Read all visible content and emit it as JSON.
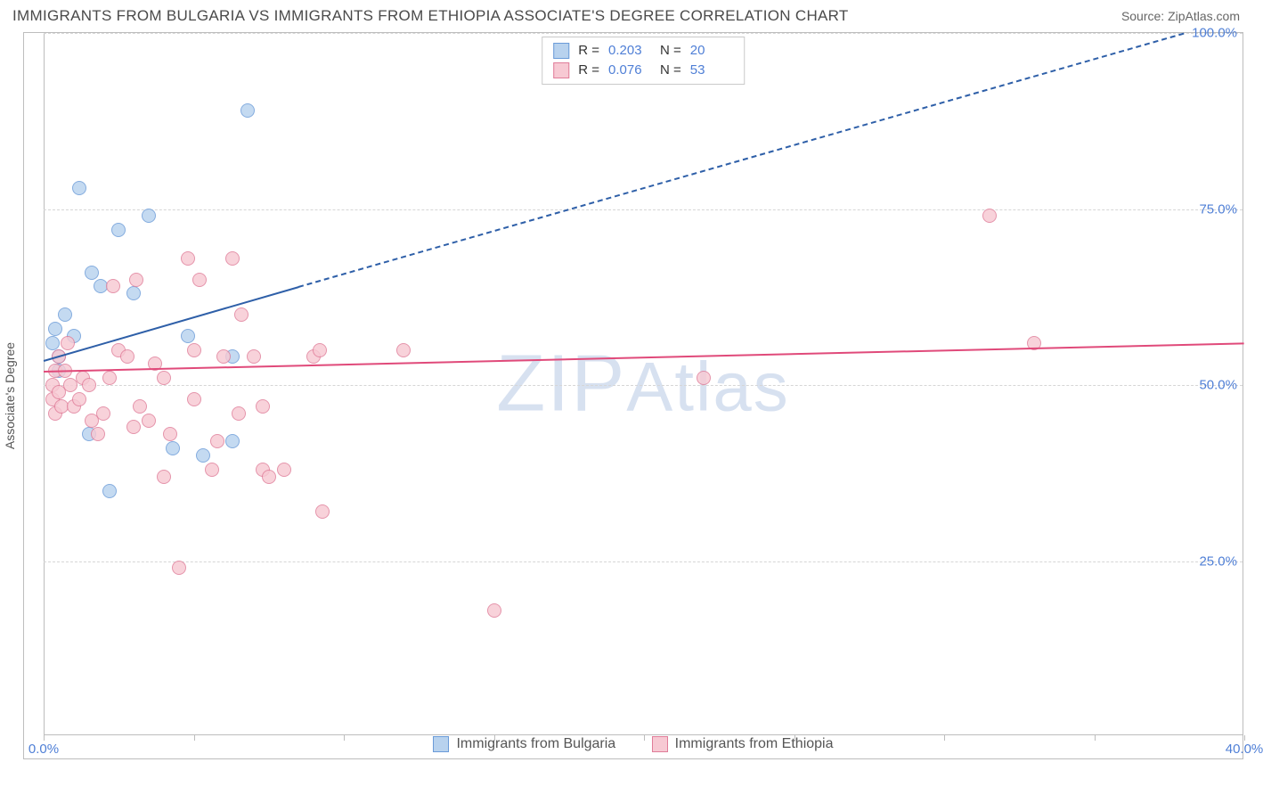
{
  "title": "IMMIGRANTS FROM BULGARIA VS IMMIGRANTS FROM ETHIOPIA ASSOCIATE'S DEGREE CORRELATION CHART",
  "source": "Source: ZipAtlas.com",
  "ylabel": "Associate's Degree",
  "watermark_a": "ZIP",
  "watermark_b": "Atlas",
  "chart": {
    "type": "scatter",
    "background_color": "#ffffff",
    "border_color": "#bdbdbd",
    "grid_color": "#d6d6d6",
    "tick_label_color": "#4f7fd6",
    "axis_label_color": "#555555",
    "xlim": [
      0,
      40
    ],
    "ylim": [
      0,
      100
    ],
    "yticks": [
      25,
      50,
      75,
      100
    ],
    "ytick_labels": [
      "25.0%",
      "50.0%",
      "75.0%",
      "100.0%"
    ],
    "xtick_positions": [
      0,
      5,
      10,
      15,
      20,
      25,
      30,
      35,
      40
    ],
    "xlim_labels": {
      "min": "0.0%",
      "max": "40.0%"
    },
    "marker_radius": 8,
    "marker_stroke_width": 1,
    "series": [
      {
        "key": "bulgaria",
        "label": "Immigrants from Bulgaria",
        "fill": "#b8d2ee",
        "stroke": "#6a9bd8",
        "trend_color": "#2e5fa8",
        "R": "0.203",
        "N": "20",
        "trend": {
          "x1": 0.0,
          "y1": 53.5,
          "x2_solid": 8.5,
          "y2_solid": 64.0,
          "x2_dash": 38.0,
          "y2_dash": 100.0
        },
        "points": [
          [
            0.3,
            56
          ],
          [
            0.4,
            58
          ],
          [
            0.5,
            54
          ],
          [
            0.5,
            52
          ],
          [
            0.7,
            60
          ],
          [
            1.0,
            57
          ],
          [
            1.2,
            78
          ],
          [
            1.5,
            43
          ],
          [
            1.6,
            66
          ],
          [
            1.9,
            64
          ],
          [
            2.2,
            35
          ],
          [
            2.5,
            72
          ],
          [
            3.0,
            63
          ],
          [
            3.5,
            74
          ],
          [
            4.3,
            41
          ],
          [
            4.8,
            57
          ],
          [
            5.3,
            40
          ],
          [
            6.3,
            42
          ],
          [
            6.8,
            89
          ],
          [
            6.3,
            54
          ]
        ]
      },
      {
        "key": "ethiopia",
        "label": "Immigrants from Ethiopia",
        "fill": "#f7c9d3",
        "stroke": "#e07d99",
        "trend_color": "#e04a7a",
        "R": "0.076",
        "N": "53",
        "trend": {
          "x1": 0.0,
          "y1": 52.0,
          "x2_solid": 40.0,
          "y2_solid": 56.0
        },
        "points": [
          [
            0.3,
            50
          ],
          [
            0.3,
            48
          ],
          [
            0.4,
            46
          ],
          [
            0.4,
            52
          ],
          [
            0.5,
            54
          ],
          [
            0.5,
            49
          ],
          [
            0.6,
            47
          ],
          [
            0.7,
            52
          ],
          [
            0.8,
            56
          ],
          [
            0.9,
            50
          ],
          [
            1.0,
            47
          ],
          [
            1.2,
            48
          ],
          [
            1.3,
            51
          ],
          [
            1.5,
            50
          ],
          [
            1.6,
            45
          ],
          [
            1.8,
            43
          ],
          [
            2.0,
            46
          ],
          [
            2.2,
            51
          ],
          [
            2.3,
            64
          ],
          [
            2.5,
            55
          ],
          [
            2.8,
            54
          ],
          [
            3.0,
            44
          ],
          [
            3.1,
            65
          ],
          [
            3.2,
            47
          ],
          [
            3.5,
            45
          ],
          [
            3.7,
            53
          ],
          [
            4.0,
            51
          ],
          [
            4.0,
            37
          ],
          [
            4.2,
            43
          ],
          [
            4.5,
            24
          ],
          [
            4.8,
            68
          ],
          [
            5.0,
            55
          ],
          [
            5.0,
            48
          ],
          [
            5.2,
            65
          ],
          [
            5.6,
            38
          ],
          [
            5.8,
            42
          ],
          [
            6.0,
            54
          ],
          [
            6.3,
            68
          ],
          [
            6.5,
            46
          ],
          [
            6.6,
            60
          ],
          [
            7.0,
            54
          ],
          [
            7.3,
            47
          ],
          [
            7.3,
            38
          ],
          [
            7.5,
            37
          ],
          [
            8.0,
            38
          ],
          [
            9.0,
            54
          ],
          [
            9.3,
            32
          ],
          [
            9.2,
            55
          ],
          [
            12.0,
            55
          ],
          [
            15.0,
            18
          ],
          [
            22.0,
            51
          ],
          [
            31.5,
            74
          ],
          [
            33.0,
            56
          ]
        ]
      }
    ]
  }
}
